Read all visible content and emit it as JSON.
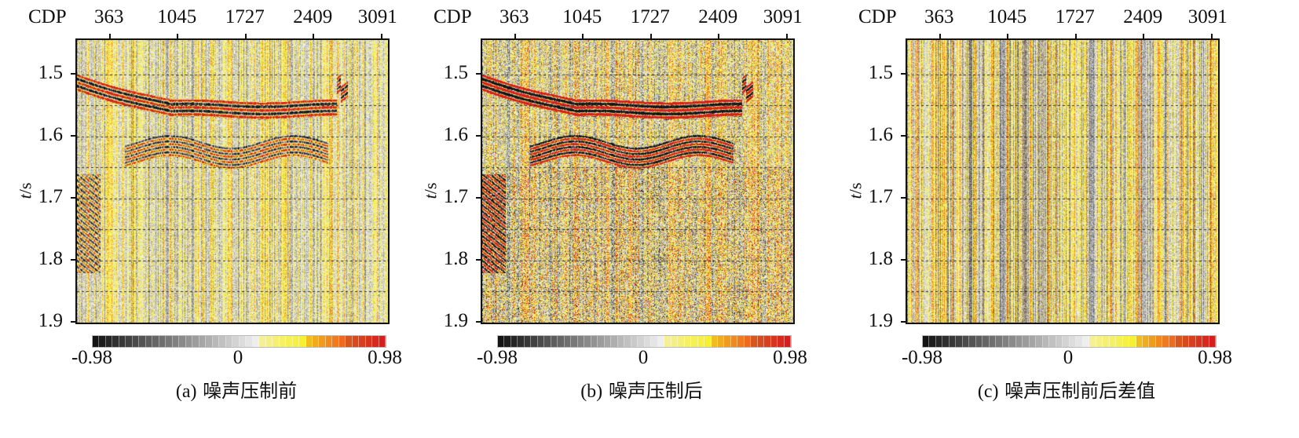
{
  "chart_data": {
    "type": "heatmap",
    "panels": [
      {
        "caption_id": "(a)",
        "caption": "噪声压制前",
        "reflectors": true,
        "strength": 0.6
      },
      {
        "caption_id": "(b)",
        "caption": "噪声压制后",
        "reflectors": true,
        "strength": 1.0
      },
      {
        "caption_id": "(c)",
        "caption": "噪声压制前后差值",
        "reflectors": false,
        "strength": 0.0
      }
    ],
    "xlabel": "CDP",
    "xticks": [
      "363",
      "1045",
      "1727",
      "2409",
      "3091"
    ],
    "xtick_values": [
      363,
      1045,
      1727,
      2409,
      3091
    ],
    "xlim": [
      26,
      3180
    ],
    "ylabel_italic": "t",
    "ylabel_unit": "/s",
    "yticks": [
      "1.5",
      "1.6",
      "1.7",
      "1.8",
      "1.9"
    ],
    "ytick_values": [
      1.5,
      1.6,
      1.7,
      1.8,
      1.9
    ],
    "ylim": [
      1.445,
      1.905
    ],
    "grid": "dashed horizontal every 0.05 s",
    "colorbar": {
      "min_label": "-0.98",
      "mid_label": "0",
      "max_label": "0.98",
      "min": -0.98,
      "max": 0.98,
      "colors": [
        "#111111",
        "#7a7a7a",
        "#ffffff",
        "#f5ef20",
        "#f0a020",
        "#d42020"
      ]
    }
  }
}
